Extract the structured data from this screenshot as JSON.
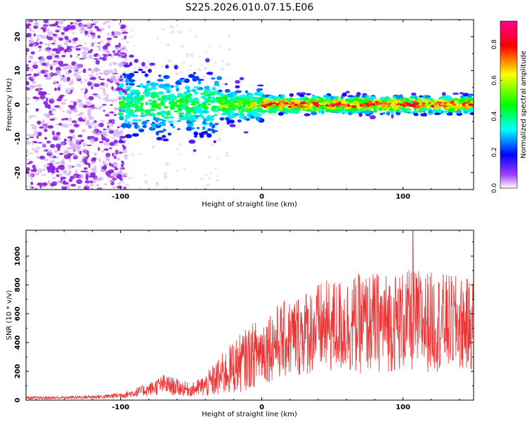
{
  "title": "S225.2026.010.07.15.E06",
  "spectrogram": {
    "type": "heatmap",
    "xlabel": "Height of straight line (km)",
    "ylabel": "Frequency (Hz)",
    "xlim": [
      -167,
      150
    ],
    "ylim": [
      -25,
      25
    ],
    "xticks": [
      -100,
      0,
      100
    ],
    "yticks": [
      -20,
      -10,
      0,
      10,
      20
    ],
    "signal_band_hz": 0,
    "noise_region_km": [
      -167,
      -100
    ],
    "colorbar": {
      "label": "Normalized spectral amplitude",
      "range": [
        0,
        0.93
      ],
      "ticks": [
        "0.0",
        "0.2",
        "0.4",
        "0.6",
        "0.8"
      ],
      "stops": [
        "#ffffff",
        "#8800ff",
        "#0000ff",
        "#00ffff",
        "#00ff00",
        "#ffff00",
        "#ff0000",
        "#ff00aa"
      ]
    }
  },
  "chart_data": {
    "type": "line",
    "xlabel": "Height of straight line (km)",
    "ylabel": "SNR (10 * v/v)",
    "xlim": [
      -167,
      150
    ],
    "ylim": [
      0,
      1180
    ],
    "xticks": [
      -100,
      0,
      100
    ],
    "yticks": [
      0,
      200,
      400,
      600,
      800,
      1000
    ],
    "color": "#ee3333",
    "envelope_x": [
      -167,
      -140,
      -110,
      -95,
      -80,
      -70,
      -60,
      -50,
      -40,
      -30,
      -20,
      -10,
      0,
      10,
      20,
      30,
      40,
      50,
      60,
      70,
      80,
      90,
      100,
      110,
      120,
      130,
      140,
      150
    ],
    "envelope_mean": [
      15,
      17,
      25,
      40,
      75,
      110,
      90,
      70,
      100,
      160,
      230,
      290,
      350,
      400,
      430,
      470,
      500,
      510,
      520,
      530,
      540,
      540,
      550,
      550,
      545,
      540,
      530,
      520
    ],
    "envelope_spread": [
      10,
      10,
      15,
      25,
      45,
      70,
      60,
      45,
      80,
      140,
      190,
      220,
      240,
      260,
      280,
      300,
      320,
      330,
      340,
      350,
      350,
      350,
      350,
      360,
      350,
      340,
      330,
      320
    ],
    "peak_value": 1175,
    "peak_x": 107
  }
}
